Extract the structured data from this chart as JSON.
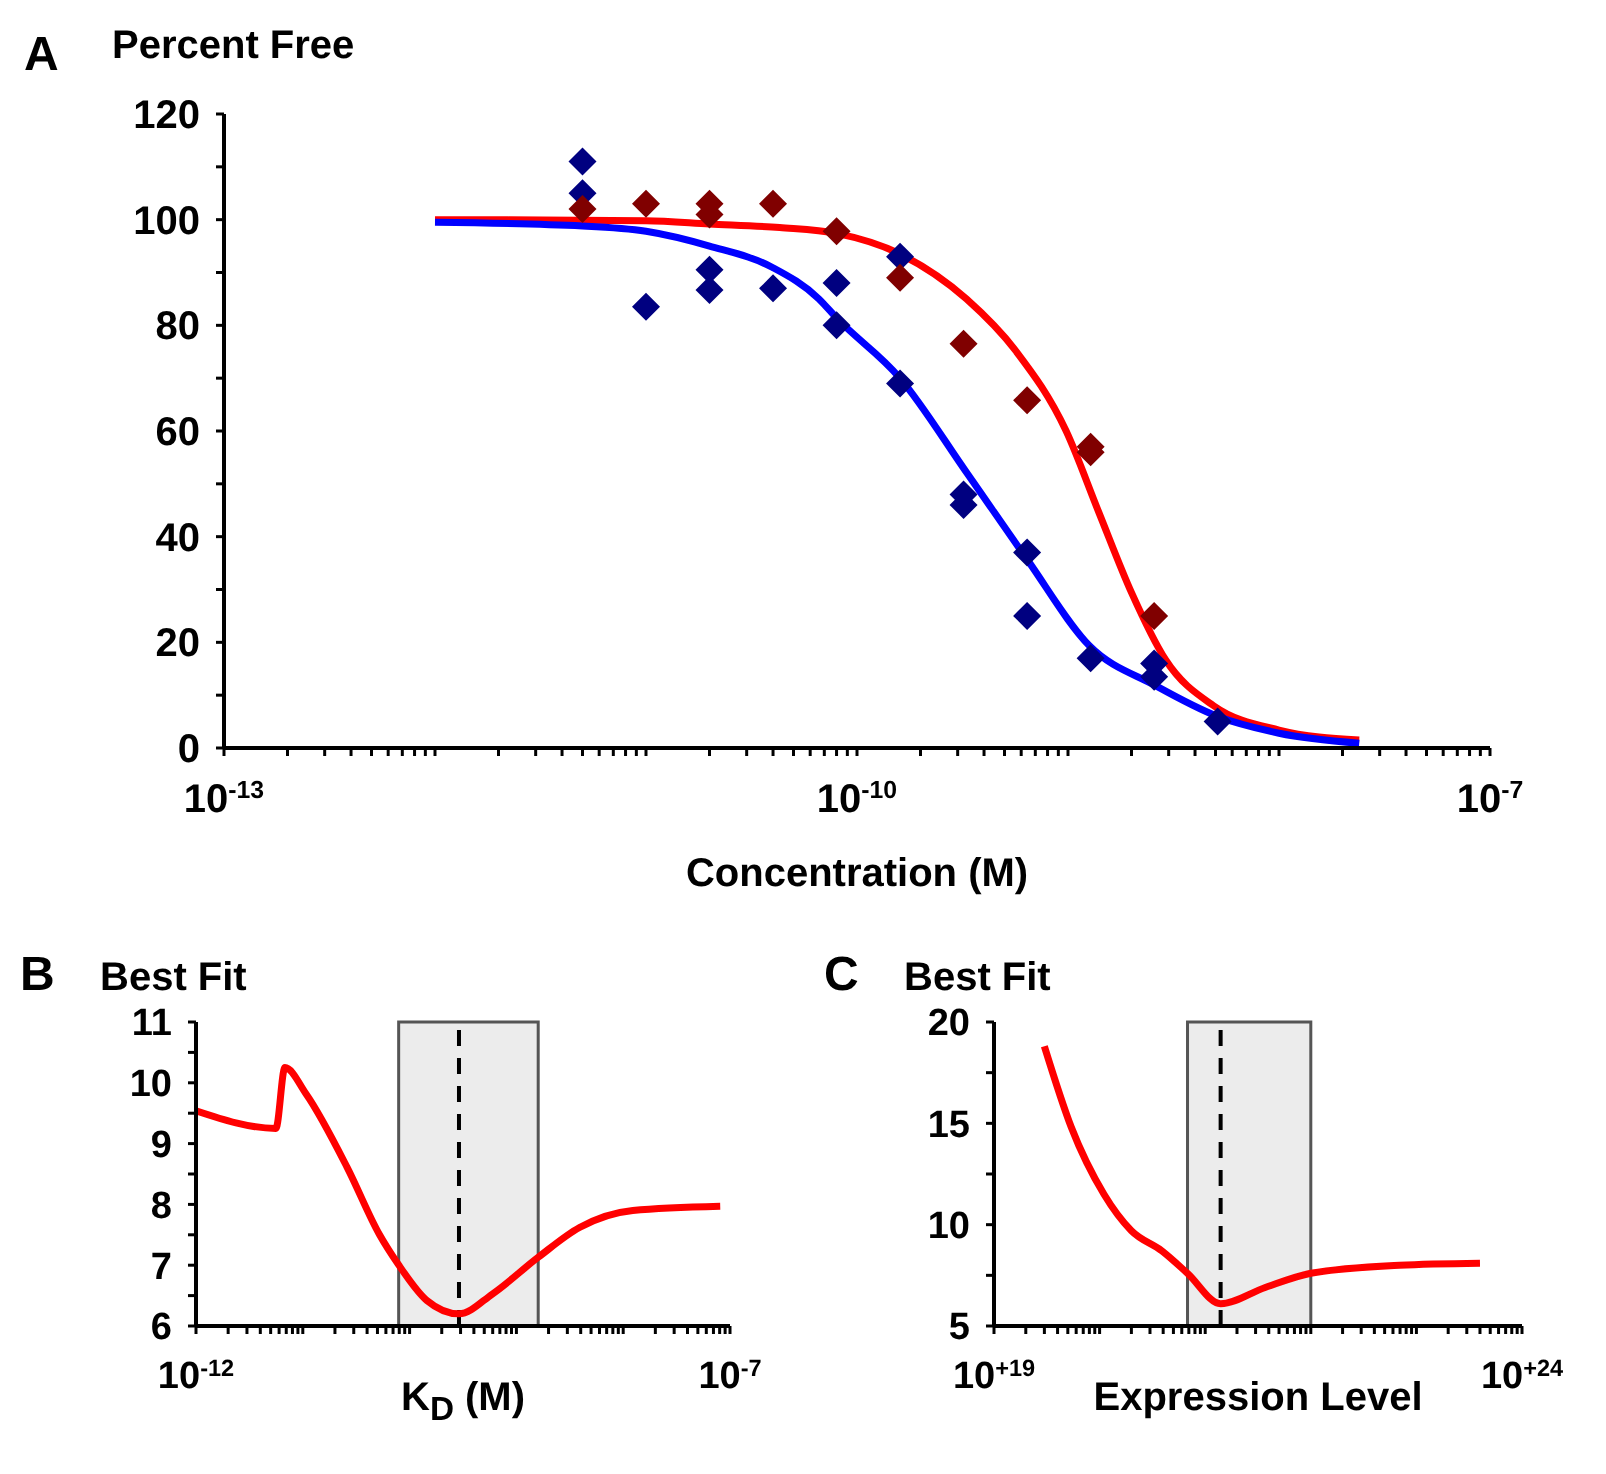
{
  "chart_data": [
    {
      "type": "scatter",
      "title": "A",
      "ylabel": "Percent Free",
      "xlabel": "Concentration (M)",
      "log": "x",
      "grid": false,
      "xlim": [
        1e-13,
        1e-07
      ],
      "xticks": [
        {
          "value": 1e-13,
          "label": "10$^{-13}$"
        },
        {
          "value": 2e-13,
          "label": null
        },
        {
          "value": 3e-13,
          "label": null
        },
        {
          "value": 4e-13,
          "label": null
        },
        {
          "value": 5e-13,
          "label": null
        },
        {
          "value": 6e-13,
          "label": null
        },
        {
          "value": 7e-13,
          "label": null
        },
        {
          "value": 8e-13,
          "label": null
        },
        {
          "value": 9e-13,
          "label": null
        },
        {
          "value": 1e-12,
          "label": null
        },
        {
          "value": 2e-12,
          "label": null
        },
        {
          "value": 3e-12,
          "label": null
        },
        {
          "value": 4e-12,
          "label": null
        },
        {
          "value": 5e-12,
          "label": null
        },
        {
          "value": 6e-12,
          "label": null
        },
        {
          "value": 7e-12,
          "label": null
        },
        {
          "value": 8e-12,
          "label": null
        },
        {
          "value": 9e-12,
          "label": null
        },
        {
          "value": 1e-11,
          "label": null
        },
        {
          "value": 2e-11,
          "label": null
        },
        {
          "value": 3e-11,
          "label": null
        },
        {
          "value": 4e-11,
          "label": null
        },
        {
          "value": 5e-11,
          "label": null
        },
        {
          "value": 6e-11,
          "label": null
        },
        {
          "value": 7e-11,
          "label": null
        },
        {
          "value": 8e-11,
          "label": null
        },
        {
          "value": 9e-11,
          "label": null
        },
        {
          "value": 1e-10,
          "label": "10$^{-10}$"
        },
        {
          "value": 2e-10,
          "label": null
        },
        {
          "value": 3e-10,
          "label": null
        },
        {
          "value": 4e-10,
          "label": null
        },
        {
          "value": 5e-10,
          "label": null
        },
        {
          "value": 6e-10,
          "label": null
        },
        {
          "value": 7e-10,
          "label": null
        },
        {
          "value": 8e-10,
          "label": null
        },
        {
          "value": 9e-10,
          "label": null
        },
        {
          "value": 1e-09,
          "label": null
        },
        {
          "value": 2e-09,
          "label": null
        },
        {
          "value": 3e-09,
          "label": null
        },
        {
          "value": 4e-09,
          "label": null
        },
        {
          "value": 5e-09,
          "label": null
        },
        {
          "value": 6e-09,
          "label": null
        },
        {
          "value": 7e-09,
          "label": null
        },
        {
          "value": 8e-09,
          "label": null
        },
        {
          "value": 9e-09,
          "label": null
        },
        {
          "value": 1e-08,
          "label": null
        },
        {
          "value": 2e-08,
          "label": null
        },
        {
          "value": 3e-08,
          "label": null
        },
        {
          "value": 4e-08,
          "label": null
        },
        {
          "value": 5e-08,
          "label": null
        },
        {
          "value": 6e-08,
          "label": null
        },
        {
          "value": 7e-08,
          "label": null
        },
        {
          "value": 8e-08,
          "label": null
        },
        {
          "value": 9e-08,
          "label": null
        },
        {
          "value": 1e-07,
          "label": "10$^{-7}$"
        }
      ],
      "ylim": [
        0,
        120
      ],
      "yticks": [
        0,
        {
          "value": 10,
          "label": null
        },
        20,
        {
          "value": 30,
          "label": null
        },
        40,
        {
          "value": 50,
          "label": null
        },
        60,
        {
          "value": 70,
          "label": null
        },
        80,
        {
          "value": 90,
          "label": null
        },
        100,
        {
          "value": 110,
          "label": null
        },
        120
      ],
      "series": [
        {
          "marker": "diamond",
          "color": "#000080",
          "x": [
            5e-12,
            5e-12,
            1e-11,
            2e-11,
            2e-11,
            4e-11,
            8e-11,
            8e-11,
            1.6e-10,
            1.6e-10,
            3.2e-10,
            3.2e-10,
            6.4e-10,
            6.4e-10,
            1.28e-09,
            2.56e-09,
            2.56e-09,
            5.12e-09
          ],
          "values": [
            111,
            105,
            83.5,
            90.5,
            86.7,
            87,
            88,
            80,
            93,
            69,
            48,
            46,
            37,
            25,
            17,
            16,
            13.5,
            5
          ]
        },
        {
          "marker": "diamond",
          "color": "#800000",
          "x": [
            5e-12,
            1e-11,
            2e-11,
            2e-11,
            4e-11,
            8e-11,
            1.6e-10,
            3.2e-10,
            6.4e-10,
            1.28e-09,
            1.28e-09,
            2.56e-09
          ],
          "values": [
            102,
            103,
            103,
            101,
            103,
            97.8,
            89,
            76.5,
            65.8,
            57,
            56,
            25
          ]
        },
        {
          "type": "line",
          "color": "#ff0000",
          "x": [
            1e-12,
            1e-11,
            2e-11,
            4.3e-11,
            8e-11,
            1.6e-10,
            3.3e-10,
            5.7e-10,
            9.8e-10,
            1.4e-09,
            2e-09,
            2.9e-09,
            4.9e-09,
            1e-08,
            2.4e-08
          ],
          "values": [
            100,
            99.8,
            99.2,
            98.5,
            97.4,
            93.5,
            85,
            75,
            60,
            44.6,
            29.4,
            16.7,
            8,
            3.4,
            1.5
          ]
        },
        {
          "type": "line",
          "color": "#0000ff",
          "x": [
            1e-12,
            5e-12,
            1e-11,
            2e-11,
            4e-11,
            6.6e-11,
            8e-11,
            1.6e-10,
            3.3e-10,
            6.4e-10,
            1.26e-09,
            2.6e-09,
            5.1e-09,
            1e-08,
            2.4e-08
          ],
          "values": [
            99.5,
            98.8,
            97.8,
            95,
            90.9,
            85,
            81.4,
            70,
            52.2,
            35.7,
            19.4,
            11.8,
            6,
            2.8,
            0.9
          ]
        }
      ]
    },
    {
      "type": "line",
      "title": "B",
      "ylabel": "Best Fit",
      "xlabel": "K$_{D}$ (M)",
      "log": "x",
      "grid": false,
      "xlim": [
        1e-12,
        1e-07
      ],
      "xticks": [
        {
          "value": 1e-12,
          "label": "10$^{-12}$"
        },
        {
          "value": 2e-12,
          "label": null
        },
        {
          "value": 3e-12,
          "label": null
        },
        {
          "value": 4e-12,
          "label": null
        },
        {
          "value": 5e-12,
          "label": null
        },
        {
          "value": 6e-12,
          "label": null
        },
        {
          "value": 7e-12,
          "label": null
        },
        {
          "value": 8e-12,
          "label": null
        },
        {
          "value": 9e-12,
          "label": null
        },
        {
          "value": 1e-11,
          "label": null
        },
        {
          "value": 2e-11,
          "label": null
        },
        {
          "value": 3e-11,
          "label": null
        },
        {
          "value": 4e-11,
          "label": null
        },
        {
          "value": 5e-11,
          "label": null
        },
        {
          "value": 6e-11,
          "label": null
        },
        {
          "value": 7e-11,
          "label": null
        },
        {
          "value": 8e-11,
          "label": null
        },
        {
          "value": 9e-11,
          "label": null
        },
        {
          "value": 1e-10,
          "label": null
        },
        {
          "value": 2e-10,
          "label": null
        },
        {
          "value": 3e-10,
          "label": null
        },
        {
          "value": 4e-10,
          "label": null
        },
        {
          "value": 5e-10,
          "label": null
        },
        {
          "value": 6e-10,
          "label": null
        },
        {
          "value": 7e-10,
          "label": null
        },
        {
          "value": 8e-10,
          "label": null
        },
        {
          "value": 9e-10,
          "label": null
        },
        {
          "value": 1e-09,
          "label": null
        },
        {
          "value": 2e-09,
          "label": null
        },
        {
          "value": 3e-09,
          "label": null
        },
        {
          "value": 4e-09,
          "label": null
        },
        {
          "value": 5e-09,
          "label": null
        },
        {
          "value": 6e-09,
          "label": null
        },
        {
          "value": 7e-09,
          "label": null
        },
        {
          "value": 8e-09,
          "label": null
        },
        {
          "value": 9e-09,
          "label": null
        },
        {
          "value": 1e-08,
          "label": null
        },
        {
          "value": 2e-08,
          "label": null
        },
        {
          "value": 3e-08,
          "label": null
        },
        {
          "value": 4e-08,
          "label": null
        },
        {
          "value": 5e-08,
          "label": null
        },
        {
          "value": 6e-08,
          "label": null
        },
        {
          "value": 7e-08,
          "label": null
        },
        {
          "value": 8e-08,
          "label": null
        },
        {
          "value": 9e-08,
          "label": null
        },
        {
          "value": 1e-07,
          "label": "10$^{-7}$"
        }
      ],
      "ylim": [
        6,
        11
      ],
      "yticks": [
        6,
        {
          "value": 6.5,
          "label": null
        },
        7,
        {
          "value": 7.5,
          "label": null
        },
        8,
        {
          "value": 8.5,
          "label": null
        },
        9,
        {
          "value": 9.5,
          "label": null
        },
        10,
        {
          "value": 10.5,
          "label": null
        },
        11
      ],
      "bands": [
        {
          "axis": "x",
          "from": 7.9e-11,
          "to": 1.6e-09,
          "color": "#ececec"
        }
      ],
      "ref_lines": [
        {
          "axis": "x",
          "value": 2.9e-10,
          "line_style": "dashed",
          "color": "#000000"
        }
      ],
      "series": [
        {
          "color": "#ff0000",
          "x": [
            1e-12,
            5.6e-12,
            6.8e-12,
            1.07e-11,
            2.6e-11,
            5.2e-11,
            7.8e-11,
            1.45e-10,
            2.9e-10,
            6e-10,
            1.6e-09,
            3.9e-09,
            1.23e-08,
            8.1e-08
          ],
          "values": [
            9.54,
            9.25,
            10.25,
            9.82,
            8.61,
            7.51,
            7.02,
            6.42,
            6.2,
            6.53,
            7.13,
            7.62,
            7.9,
            7.97
          ]
        }
      ]
    },
    {
      "type": "line",
      "title": "C",
      "ylabel": "Best Fit",
      "xlabel": "Expression Level",
      "log": "x",
      "grid": false,
      "xlim": [
        1e+19,
        1e+24
      ],
      "xticks": [
        {
          "value": 1e+19,
          "label": "10$^{+19}$"
        },
        {
          "value": 2e+19,
          "label": null
        },
        {
          "value": 3e+19,
          "label": null
        },
        {
          "value": 4e+19,
          "label": null
        },
        {
          "value": 5e+19,
          "label": null
        },
        {
          "value": 6e+19,
          "label": null
        },
        {
          "value": 7e+19,
          "label": null
        },
        {
          "value": 8e+19,
          "label": null
        },
        {
          "value": 9e+19,
          "label": null
        },
        {
          "value": 1e+20,
          "label": null
        },
        {
          "value": 2e+20,
          "label": null
        },
        {
          "value": 3e+20,
          "label": null
        },
        {
          "value": 4e+20,
          "label": null
        },
        {
          "value": 5e+20,
          "label": null
        },
        {
          "value": 6e+20,
          "label": null
        },
        {
          "value": 7e+20,
          "label": null
        },
        {
          "value": 8e+20,
          "label": null
        },
        {
          "value": 9e+20,
          "label": null
        },
        {
          "value": 1e+21,
          "label": null
        },
        {
          "value": 2e+21,
          "label": null
        },
        {
          "value": 3e+21,
          "label": null
        },
        {
          "value": 4e+21,
          "label": null
        },
        {
          "value": 5e+21,
          "label": null
        },
        {
          "value": 6e+21,
          "label": null
        },
        {
          "value": 7e+21,
          "label": null
        },
        {
          "value": 8e+21,
          "label": null
        },
        {
          "value": 9e+21,
          "label": null
        },
        {
          "value": 1e+22,
          "label": null
        },
        {
          "value": 2e+22,
          "label": null
        },
        {
          "value": 3e+22,
          "label": null
        },
        {
          "value": 4e+22,
          "label": null
        },
        {
          "value": 5e+22,
          "label": null
        },
        {
          "value": 6e+22,
          "label": null
        },
        {
          "value": 7e+22,
          "label": null
        },
        {
          "value": 8e+22,
          "label": null
        },
        {
          "value": 9e+22,
          "label": null
        },
        {
          "value": 1e+23,
          "label": null
        },
        {
          "value": 2e+23,
          "label": null
        },
        {
          "value": 3e+23,
          "label": null
        },
        {
          "value": 4e+23,
          "label": null
        },
        {
          "value": 5e+23,
          "label": null
        },
        {
          "value": 6e+23,
          "label": null
        },
        {
          "value": 7e+23,
          "label": null
        },
        {
          "value": 8e+23,
          "label": null
        },
        {
          "value": 9e+23,
          "label": null
        },
        {
          "value": 1e+24,
          "label": "10$^{+24}$"
        }
      ],
      "ylim": [
        5,
        20
      ],
      "yticks": [
        5,
        {
          "value": 7.5,
          "label": null
        },
        10,
        {
          "value": 12.5,
          "label": null
        },
        15,
        {
          "value": 17.5,
          "label": null
        },
        20
      ],
      "bands": [
        {
          "axis": "x",
          "from": 6.8e+20,
          "to": 1e+22,
          "color": "#ececec"
        }
      ],
      "ref_lines": [
        {
          "axis": "x",
          "value": 1.4e+21,
          "line_style": "dashed",
          "color": "#000000"
        }
      ],
      "series": [
        {
          "color": "#ff0000",
          "x": [
            3e+19,
            5.4e+19,
            1.1e+20,
            2e+20,
            3.9e+20,
            6.8e+20,
            1.4e+21,
            3.7e+21,
            1e+22,
            6.9e+22,
            4e+23
          ],
          "values": [
            18.8,
            14.8,
            11.5,
            9.7,
            8.7,
            7.6,
            6.1,
            6.9,
            7.6,
            8.0,
            8.1
          ]
        }
      ]
    }
  ]
}
